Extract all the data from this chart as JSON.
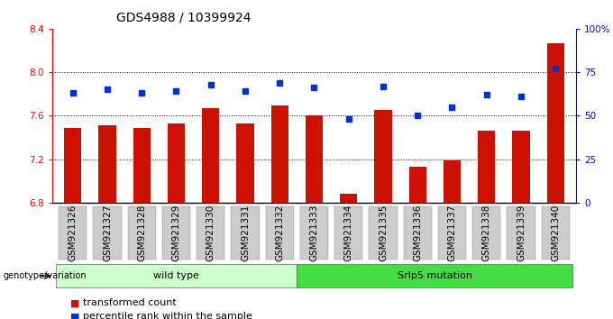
{
  "title": "GDS4988 / 10399924",
  "samples": [
    "GSM921326",
    "GSM921327",
    "GSM921328",
    "GSM921329",
    "GSM921330",
    "GSM921331",
    "GSM921332",
    "GSM921333",
    "GSM921334",
    "GSM921335",
    "GSM921336",
    "GSM921337",
    "GSM921338",
    "GSM921339",
    "GSM921340"
  ],
  "red_values": [
    7.49,
    7.51,
    7.49,
    7.53,
    7.67,
    7.53,
    7.69,
    7.6,
    6.88,
    7.65,
    7.13,
    7.19,
    7.46,
    7.46,
    8.27
  ],
  "blue_percentiles": [
    63,
    65,
    63,
    64,
    68,
    64,
    69,
    66,
    48,
    67,
    50,
    55,
    62,
    61,
    77
  ],
  "ylim_left": [
    6.8,
    8.4
  ],
  "ylim_right": [
    0,
    100
  ],
  "yticks_left": [
    6.8,
    7.2,
    7.6,
    8.0,
    8.4
  ],
  "yticks_right": [
    0,
    25,
    50,
    75,
    100
  ],
  "ytick_labels_right": [
    "0",
    "25",
    "50",
    "75",
    "100%"
  ],
  "hlines": [
    7.2,
    7.6,
    8.0
  ],
  "wild_type_count": 7,
  "bar_color": "#cc1100",
  "dot_color": "#0033cc",
  "group1_label": "wild type",
  "group2_label": "Srlp5 mutation",
  "group1_color": "#ccffcc",
  "group2_color": "#44dd44",
  "genotype_label": "genotype/variation",
  "legend_bar_label": "transformed count",
  "legend_dot_label": "percentile rank within the sample",
  "xtick_bg_color": "#cccccc",
  "title_fontsize": 10,
  "axis_fontsize": 7.5,
  "legend_fontsize": 8,
  "group_fontsize": 8,
  "bar_width": 0.5
}
